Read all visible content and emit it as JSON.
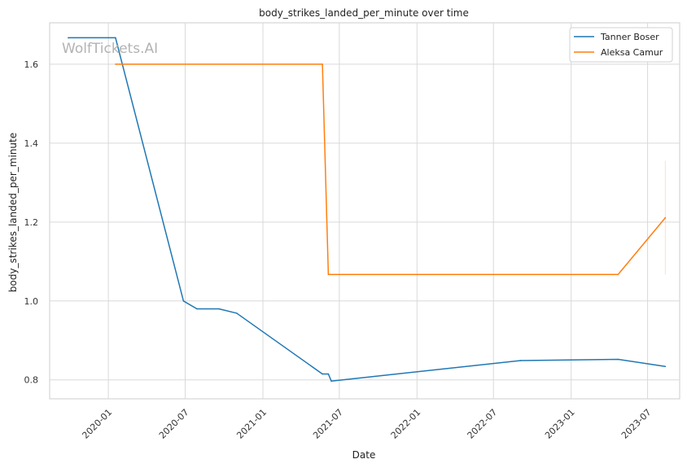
{
  "chart_data": {
    "type": "line",
    "title": "body_strikes_landed_per_minute over time",
    "xlabel": "Date",
    "ylabel": "body_strikes_landed_per_minute",
    "watermark": "WolfTickets.AI",
    "x_ticks": [
      "2020-01",
      "2020-07",
      "2021-01",
      "2021-07",
      "2022-01",
      "2022-07",
      "2023-01",
      "2023-07"
    ],
    "y_ticks": [
      "0.8",
      "1.0",
      "1.2",
      "1.4",
      "1.6"
    ],
    "xlim": [
      "2019-08-15",
      "2023-09-15"
    ],
    "ylim": [
      0.752,
      1.705
    ],
    "grid": true,
    "legend_position": "top-right",
    "series": [
      {
        "name": "Tanner Boser",
        "color": "#1f77b4",
        "points": [
          {
            "x": "2019-09-28",
            "y": 1.667
          },
          {
            "x": "2020-01-18",
            "y": 1.667
          },
          {
            "x": "2020-06-27",
            "y": 1.0
          },
          {
            "x": "2020-07-29",
            "y": 0.98
          },
          {
            "x": "2020-09-19",
            "y": 0.98
          },
          {
            "x": "2020-10-31",
            "y": 0.969
          },
          {
            "x": "2021-05-22",
            "y": 0.815
          },
          {
            "x": "2021-06-05",
            "y": 0.815
          },
          {
            "x": "2021-06-12",
            "y": 0.797
          },
          {
            "x": "2022-09-03",
            "y": 0.849
          },
          {
            "x": "2023-04-22",
            "y": 0.852
          },
          {
            "x": "2023-08-12",
            "y": 0.834
          }
        ]
      },
      {
        "name": "Aleksa Camur",
        "color": "#ff7f0e",
        "points": [
          {
            "x": "2020-01-18",
            "y": 1.6
          },
          {
            "x": "2021-05-22",
            "y": 1.6
          },
          {
            "x": "2021-06-05",
            "y": 1.067
          },
          {
            "x": "2023-04-22",
            "y": 1.067
          },
          {
            "x": "2023-08-12",
            "y": 1.211
          }
        ],
        "error_band": {
          "x": "2023-08-12",
          "low": 1.067,
          "high": 1.355
        }
      }
    ]
  }
}
